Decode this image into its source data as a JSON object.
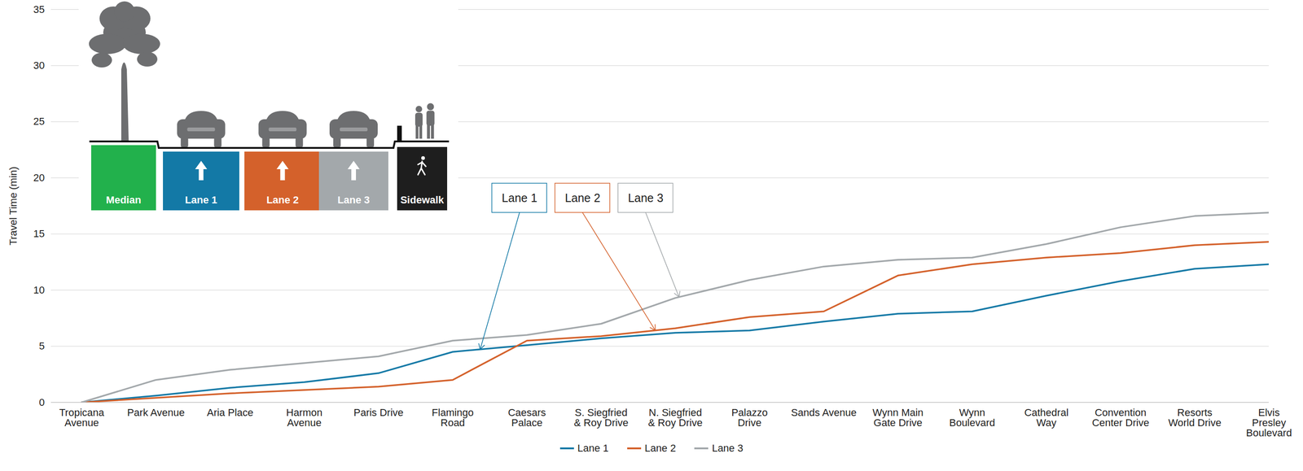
{
  "chart_data": {
    "type": "line",
    "y_label": "Travel Time (min)",
    "categories": [
      "Tropicana Avenue",
      "Park Avenue",
      "Aria Place",
      "Harmon Avenue",
      "Paris Drive",
      "Flamingo Road",
      "Caesars Palace",
      "S. Siegfried & Roy Drive",
      "N. Siegfried & Roy Drive",
      "Palazzo Drive",
      "Sands Avenue",
      "Wynn Main Gate Drive",
      "Wynn Boulevard",
      "Cathedral Way",
      "Convention Center Drive",
      "Resorts World Drive",
      "Elvis Presley Boulevard"
    ],
    "series": [
      {
        "name": "Lane 1",
        "color": "#1379a6",
        "values": [
          0,
          0.6,
          1.3,
          1.8,
          2.6,
          4.5,
          5.1,
          5.7,
          6.2,
          6.4,
          7.2,
          7.9,
          8.1,
          9.5,
          10.8,
          11.9,
          12.3
        ]
      },
      {
        "name": "Lane 2",
        "color": "#d4612b",
        "values": [
          0,
          0.4,
          0.8,
          1.1,
          1.4,
          2.0,
          5.5,
          5.9,
          6.6,
          7.6,
          8.1,
          11.3,
          12.3,
          12.9,
          13.3,
          14.0,
          14.3
        ]
      },
      {
        "name": "Lane 3",
        "color": "#a3a8ab",
        "values": [
          0,
          2.0,
          2.9,
          3.5,
          4.1,
          5.5,
          6.0,
          7.0,
          9.3,
          10.9,
          12.1,
          12.7,
          12.9,
          14.1,
          15.6,
          16.6,
          16.9
        ]
      }
    ],
    "ylim": [
      0,
      35
    ],
    "yticks": [
      0,
      5,
      10,
      15,
      20,
      25,
      30,
      35
    ],
    "grid": true,
    "legend": "bottom",
    "annotations": [
      "Lane 1",
      "Lane 2",
      "Lane 3"
    ],
    "lane_diagram": [
      {
        "label": "Median",
        "color": "#22b14c"
      },
      {
        "label": "Lane 1",
        "color": "#1379a6"
      },
      {
        "label": "Lane 2",
        "color": "#d4612b"
      },
      {
        "label": "Lane 3",
        "color": "#a3a8ab"
      },
      {
        "label": "Sidewalk",
        "color": "#1e1e1e"
      }
    ]
  }
}
